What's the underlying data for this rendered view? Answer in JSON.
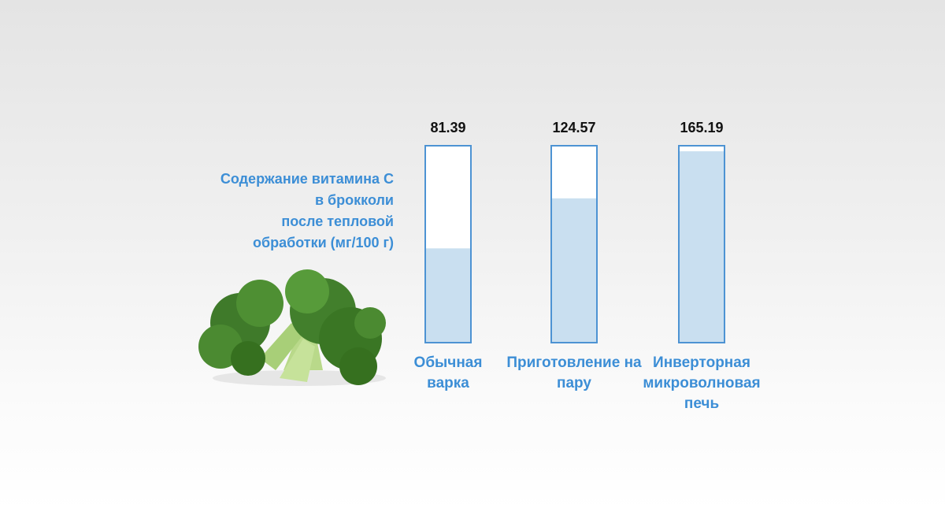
{
  "chart_data": {
    "type": "bar",
    "title": "Содержание витамина С\nв брокколи \nпосле тепловой \nобработки (мг/100 г)",
    "categories": [
      "Обычная варка",
      "Приготовление на пару",
      "Инверторная микроволновая печь"
    ],
    "values": [
      81.39,
      124.57,
      165.19
    ],
    "color": "#c9dff0",
    "ylim": [
      0,
      170
    ]
  }
}
